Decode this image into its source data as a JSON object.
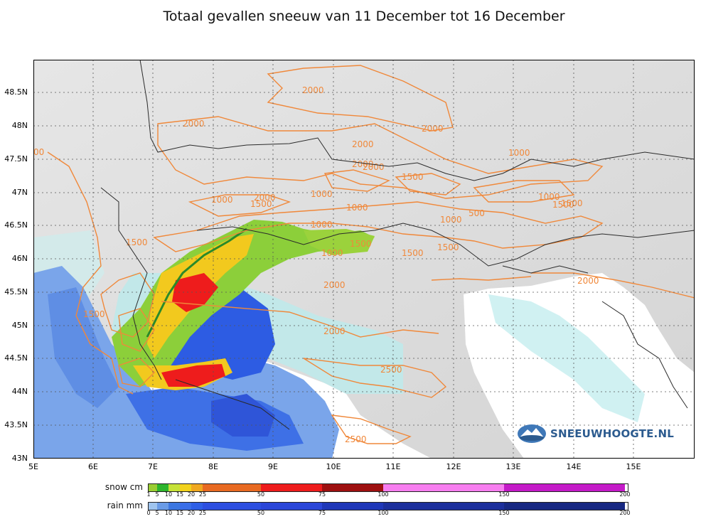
{
  "title": "Totaal gevallen sneeuw van 11 December tot 16 December",
  "axes": {
    "lat_labels": [
      "48.5N",
      "48N",
      "47.5N",
      "47N",
      "46.5N",
      "46N",
      "45.5N",
      "45N",
      "44.5N",
      "44N",
      "43.5N",
      "43N"
    ],
    "lon_labels": [
      "5E",
      "6E",
      "7E",
      "8E",
      "9E",
      "10E",
      "11E",
      "12E",
      "13E",
      "14E",
      "15E"
    ]
  },
  "contour_labels": [
    "2000",
    "2000",
    "2000",
    "2000",
    "2000",
    "2000",
    "2000",
    "2000",
    "1000",
    "1500",
    "1000",
    "1000",
    "1500",
    "1000",
    "1500",
    "1000",
    "1500",
    "500",
    "1000",
    "1500",
    "1000",
    "1500",
    "1500",
    "2000",
    "2500",
    "2500",
    "2000",
    "1000",
    "1500",
    "1500",
    "00"
  ],
  "legend": {
    "snow": {
      "name": "snow cm",
      "ticks": [
        "1",
        "5",
        "10",
        "15",
        "20",
        "25",
        "50",
        "75",
        "100",
        "150",
        "200"
      ],
      "colors": [
        "#9acd32",
        "#2db52d",
        "#c6e238",
        "#f2d21c",
        "#f0a820",
        "#e86a22",
        "#ee1c1c",
        "#9e1010",
        "#f77ef0",
        "#c41ac8",
        "#7a0f9a"
      ]
    },
    "rain": {
      "name": "rain mm",
      "ticks": [
        "0",
        "5",
        "10",
        "15",
        "20",
        "25",
        "50",
        "75",
        "100",
        "150",
        "200"
      ],
      "colors": [
        "#9fc4ee",
        "#6a9be6",
        "#3d77e0",
        "#3a6ee8",
        "#2f5fe6",
        "#2d4fe0",
        "#2b46d8",
        "#1f37b8",
        "#1c2f9c",
        "#172882",
        "#10206a"
      ]
    }
  },
  "logo_text": "SNEEUWHOOGTE.NL",
  "colors": {
    "contour": "#f0883a",
    "land": "#dcdcdc",
    "sea": "#ffffff",
    "border": "#2a2a2a"
  }
}
